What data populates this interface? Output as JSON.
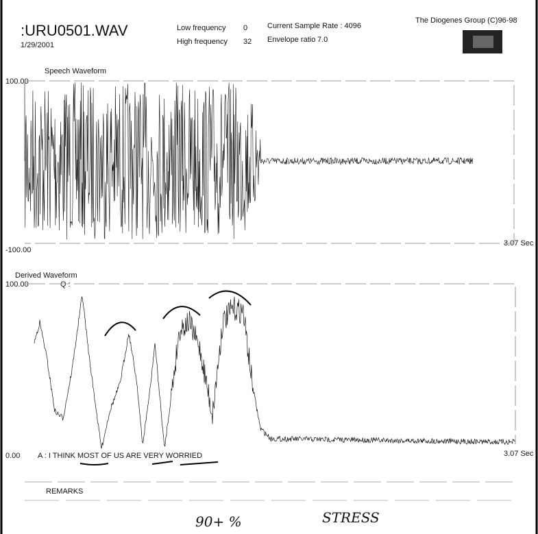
{
  "header": {
    "filename": ":URU0501.WAV",
    "date": "1/29/2001",
    "low_frequency_label": "Low frequency",
    "low_frequency": "0",
    "high_frequency_label": "High frequency",
    "high_frequency": "32",
    "sample_rate": "Current Sample Rate : 4096",
    "envelope_ratio_label": "Envelope ratio",
    "envelope_ratio": "7.0",
    "copyright": "The Diogenes Group (C)96-98"
  },
  "speech_panel": {
    "title": "Speech Waveform",
    "top_label": "100.00",
    "bottom_label": "-100.00",
    "time_label": "3.07 Sec"
  },
  "derived_panel": {
    "title": "Derived Waveform",
    "top_label": "100.00",
    "question": "Q :",
    "bottom_label": "0.00",
    "answer": "A : I THINK MOST OF US ARE VERY WORRIED",
    "time_label": "3.07 Sec"
  },
  "remarks": {
    "title": "REMARKS",
    "note_percent": "90+ %",
    "note_word": "STRESS"
  }
}
